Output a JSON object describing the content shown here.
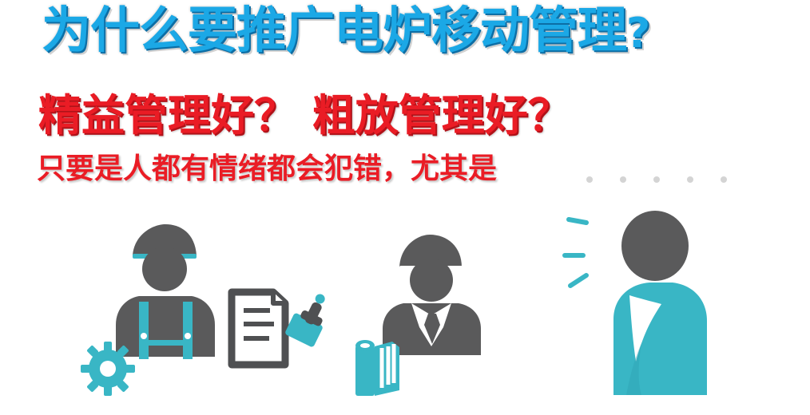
{
  "headline": {
    "main": "为什么要推广电炉移动管理",
    "mark": "?"
  },
  "subheading": {
    "text": "精益管理好？ 粗放管理好？"
  },
  "tagline": {
    "text": "只要是人都有情绪都会犯错，尤其是"
  },
  "colors": {
    "headline": "#1ba8e6",
    "emphasis": "#ea1c25",
    "figure_gray": "#5a5a5b",
    "accent_teal": "#39b6c5",
    "paper_outline": "#4f5052"
  },
  "icons": [
    "worker-with-gear-icon",
    "document-with-stamp-icon",
    "manager-with-tie-icon",
    "blueprint-roll-icon",
    "speaking-person-icon"
  ]
}
